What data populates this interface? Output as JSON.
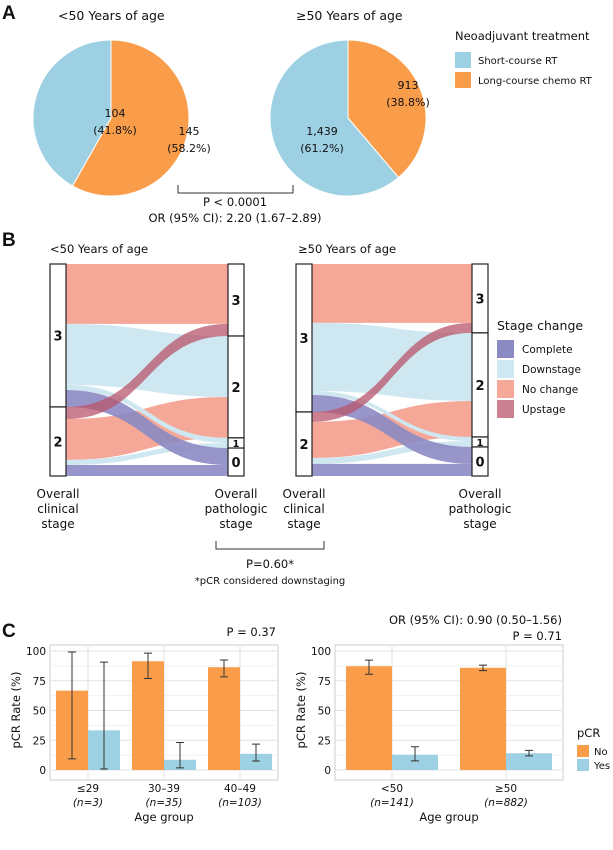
{
  "colors": {
    "short_rt": "#9dd0e3",
    "long_crt": "#f99d4b",
    "complete": "#8c8ac3",
    "downstage": "#cfe7f0",
    "nochange": "#f5a898",
    "upstage": "#b8566b",
    "yes": "#9dd0e3",
    "no": "#f99d4b"
  },
  "panel_labels": {
    "a": "A",
    "b": "B",
    "c": "C"
  },
  "chart_data": [
    {
      "type": "pie",
      "panel": "A",
      "title": "<50 Years of age",
      "slices": [
        {
          "label": "Long-course chemo RT",
          "count_text": "145",
          "pct_text": "(58.2%)",
          "value": 58.2,
          "key": "long_crt"
        },
        {
          "label": "Short-course RT",
          "count_text": "104",
          "pct_text": "(41.8%)",
          "value": 41.8,
          "key": "short_rt"
        }
      ]
    },
    {
      "type": "pie",
      "panel": "A",
      "title": "≥50 Years of age",
      "slices": [
        {
          "label": "Long-course chemo RT",
          "count_text": "913",
          "pct_text": "(38.8%)",
          "value": 38.8,
          "key": "long_crt"
        },
        {
          "label": "Short-course RT",
          "count_text": "1,439",
          "pct_text": "(61.2%)",
          "value": 61.2,
          "key": "short_rt"
        }
      ]
    },
    {
      "type": "alluvial",
      "panel": "B",
      "title": "<50 Years of age",
      "left_axis_label": [
        "Overall",
        "clinical",
        "stage"
      ],
      "right_axis_label": [
        "Overall",
        "pathologic",
        "stage"
      ],
      "left_stages": [
        "3",
        "2"
      ],
      "right_stages": [
        "3",
        "2",
        "1",
        "0"
      ],
      "flows": [
        {
          "from": "3",
          "to": "3",
          "type": "nochange",
          "value": 28.3
        },
        {
          "from": "3",
          "to": "2",
          "type": "downstage",
          "value": 28.8
        },
        {
          "from": "3",
          "to": "1",
          "type": "downstage",
          "value": 2.4
        },
        {
          "from": "3",
          "to": "0",
          "type": "complete",
          "value": 8.0
        },
        {
          "from": "2",
          "to": "3",
          "type": "upstage",
          "value": 5.7
        },
        {
          "from": "2",
          "to": "2",
          "type": "nochange",
          "value": 19.3
        },
        {
          "from": "2",
          "to": "1",
          "type": "downstage",
          "value": 2.4
        },
        {
          "from": "2",
          "to": "0",
          "type": "complete",
          "value": 5.2
        }
      ]
    },
    {
      "type": "alluvial",
      "panel": "B",
      "title": "≥50 Years of age",
      "left_axis_label": [
        "Overall",
        "clinical",
        "stage"
      ],
      "right_axis_label": [
        "Overall",
        "pathologic",
        "stage"
      ],
      "left_stages": [
        "3",
        "2"
      ],
      "right_stages": [
        "3",
        "2",
        "1",
        "0"
      ],
      "flows": [
        {
          "from": "3",
          "to": "3",
          "type": "nochange",
          "value": 27.8
        },
        {
          "from": "3",
          "to": "2",
          "type": "downstage",
          "value": 32.1
        },
        {
          "from": "3",
          "to": "1",
          "type": "downstage",
          "value": 1.9
        },
        {
          "from": "3",
          "to": "0",
          "type": "complete",
          "value": 8.0
        },
        {
          "from": "2",
          "to": "3",
          "type": "upstage",
          "value": 4.7
        },
        {
          "from": "2",
          "to": "2",
          "type": "nochange",
          "value": 17.0
        },
        {
          "from": "2",
          "to": "1",
          "type": "downstage",
          "value": 2.8
        },
        {
          "from": "2",
          "to": "0",
          "type": "complete",
          "value": 5.7
        }
      ]
    },
    {
      "type": "bar",
      "panel": "C",
      "ylabel": "pCR Rate (%)",
      "xlabel": "Age group",
      "ylim": [
        0,
        100
      ],
      "yticks": [
        "0",
        "25",
        "50",
        "75",
        "100"
      ],
      "annotation": [
        "P = 0.37"
      ],
      "categories": [
        "≤29",
        "30–39",
        "40–49"
      ],
      "category_n": [
        "(n=3)",
        "(n=35)",
        "(n=103)"
      ],
      "series": [
        {
          "name": "No",
          "key": "no",
          "values": [
            66.7,
            91.4,
            86.4
          ],
          "ci": [
            [
              9.4,
              99.2
            ],
            [
              76.9,
              98.2
            ],
            [
              78.3,
              92.4
            ]
          ]
        },
        {
          "name": "Yes",
          "key": "yes",
          "values": [
            33.3,
            8.6,
            13.6
          ],
          "ci": [
            [
              0.8,
              90.6
            ],
            [
              1.8,
              23.1
            ],
            [
              7.6,
              21.7
            ]
          ]
        }
      ]
    },
    {
      "type": "bar",
      "panel": "C",
      "ylabel": "pCR Rate (%)",
      "xlabel": "Age group",
      "ylim": [
        0,
        100
      ],
      "yticks": [
        "0",
        "25",
        "50",
        "75",
        "100"
      ],
      "annotation": [
        "OR (95% CI): 0.90 (0.50–1.56)",
        "P = 0.71"
      ],
      "categories": [
        "<50",
        "≥50"
      ],
      "category_n": [
        "(n=141)",
        "(n=882)"
      ],
      "series": [
        {
          "name": "No",
          "key": "no",
          "values": [
            87.2,
            85.9
          ],
          "ci": [
            [
              80.5,
              92.3
            ],
            [
              83.5,
              88.1
            ]
          ]
        },
        {
          "name": "Yes",
          "key": "yes",
          "values": [
            12.8,
            14.1
          ],
          "ci": [
            [
              7.7,
              19.5
            ],
            [
              11.9,
              16.5
            ]
          ]
        }
      ]
    }
  ],
  "panel_a": {
    "legend_title": "Neoadjuvant treatment",
    "legend": [
      {
        "label": "Short-course RT",
        "key": "short_rt"
      },
      {
        "label": "Long-course chemo RT",
        "key": "long_crt"
      }
    ],
    "p_value": "P < 0.0001",
    "or_text": "OR (95% CI): 2.20 (1.67–2.89)"
  },
  "panel_b": {
    "legend_title": "Stage change",
    "legend": [
      {
        "label": "Complete",
        "key": "complete"
      },
      {
        "label": "Downstage",
        "key": "downstage"
      },
      {
        "label": "No change",
        "key": "nochange"
      },
      {
        "label": "Upstage",
        "key": "upstage"
      }
    ],
    "p_value": "P=0.60*",
    "footnote": "*pCR considered downstaging"
  },
  "panel_c": {
    "legend_title": "pCR",
    "legend": [
      {
        "label": "No",
        "key": "no"
      },
      {
        "label": "Yes",
        "key": "yes"
      }
    ]
  }
}
